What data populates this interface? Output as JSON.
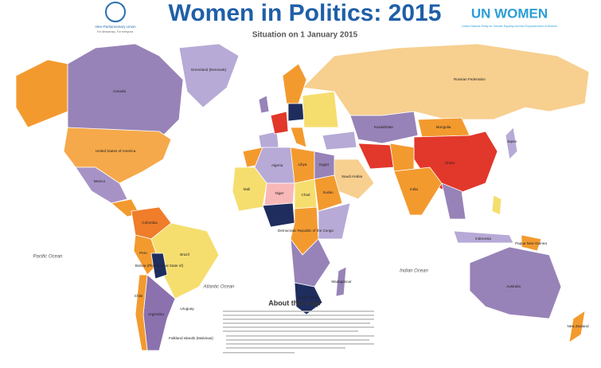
{
  "header": {
    "title": "Women in Politics: 2015",
    "subtitle": "Situation on 1 January 2015",
    "left_org": "Inter-Parliamentary Union",
    "left_org_tagline": "For democracy. For everyone.",
    "right_org": "UN WOMEN",
    "right_org_sub": "United Nations Entity for Gender Equality and the Empowerment of Women"
  },
  "map": {
    "oceans": [
      "Pacific Ocean",
      "Atlantic Ocean",
      "Indian Ocean"
    ],
    "labels": [
      "Canada",
      "United States of America",
      "Greenland (Denmark)",
      "Mexico",
      "Brazil",
      "Argentina",
      "Bolivia (Plurinational State of)",
      "Peru",
      "Colombia",
      "Chile",
      "Uruguay",
      "Falkland Islands (Malvinas)",
      "Russian Federation",
      "Kazakhstan",
      "Mongolia",
      "China",
      "Japan",
      "India",
      "Saudi Arabia",
      "Algeria",
      "Libya",
      "Egypt",
      "Mali",
      "Niger",
      "Chad",
      "Sudan",
      "Democratic Republic of the Congo",
      "South Africa",
      "Madagascar",
      "Australia",
      "New Zealand",
      "Papua New Guinea",
      "Indonesia"
    ]
  },
  "about": {
    "title": "About this map"
  }
}
